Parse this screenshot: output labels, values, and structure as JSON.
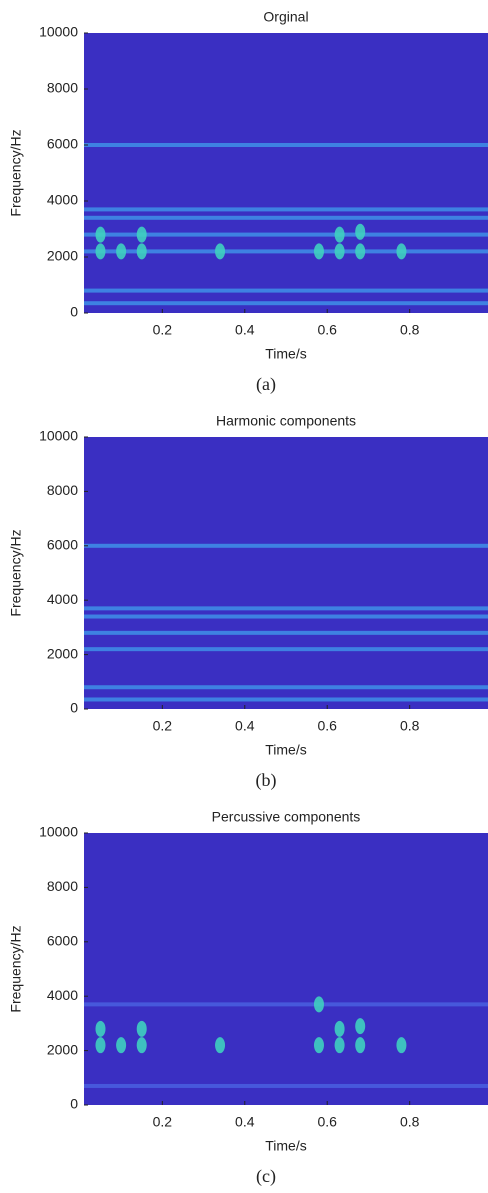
{
  "chart_data": [
    {
      "type": "spectrogram",
      "title": "Orginal",
      "caption": "(a)",
      "x_label": "Time/s",
      "y_label": "Frequency/Hz",
      "xlim": [
        0.01,
        0.99
      ],
      "ylim": [
        0,
        10000
      ],
      "xticks": [
        0.2,
        0.4,
        0.6,
        0.8
      ],
      "yticks": [
        0,
        2000,
        4000,
        6000,
        8000,
        10000
      ],
      "background": "#3a2fc2",
      "band_color": "#3f8fe8",
      "spot_color": "#3fd0c0",
      "bands": [
        350,
        800,
        2200,
        2800,
        3400,
        3700,
        6000
      ],
      "spots": {
        "x": [
          0.05,
          0.05,
          0.1,
          0.15,
          0.15,
          0.34,
          0.58,
          0.63,
          0.63,
          0.68,
          0.68,
          0.78
        ],
        "y": [
          2200,
          2800,
          2200,
          2200,
          2800,
          2200,
          2200,
          2200,
          2800,
          2200,
          2900,
          2200
        ]
      }
    },
    {
      "type": "spectrogram",
      "title": "Harmonic components",
      "caption": "(b)",
      "x_label": "Time/s",
      "y_label": "Frequency/Hz",
      "xlim": [
        0.01,
        0.99
      ],
      "ylim": [
        0,
        10000
      ],
      "xticks": [
        0.2,
        0.4,
        0.6,
        0.8
      ],
      "yticks": [
        0,
        2000,
        4000,
        6000,
        8000,
        10000
      ],
      "background": "#3a2fc2",
      "band_color": "#3f8fe8",
      "spot_color": "#3fd0c0",
      "bands": [
        350,
        800,
        2200,
        2800,
        3400,
        3700,
        6000
      ],
      "spots": {
        "x": [],
        "y": []
      }
    },
    {
      "type": "spectrogram",
      "title": "Percussive components",
      "caption": "(c)",
      "x_label": "Time/s",
      "y_label": "Frequency/Hz",
      "xlim": [
        0.01,
        0.99
      ],
      "ylim": [
        0,
        10000
      ],
      "xticks": [
        0.2,
        0.4,
        0.6,
        0.8
      ],
      "yticks": [
        0,
        2000,
        4000,
        6000,
        8000,
        10000
      ],
      "background": "#3a2fc2",
      "band_color": "#4a5fe0",
      "spot_color": "#3fd0c0",
      "bands": [
        700,
        3700
      ],
      "spots": {
        "x": [
          0.05,
          0.05,
          0.1,
          0.15,
          0.15,
          0.34,
          0.58,
          0.58,
          0.63,
          0.63,
          0.68,
          0.68,
          0.78
        ],
        "y": [
          2200,
          2800,
          2200,
          2200,
          2800,
          2200,
          2200,
          3700,
          2200,
          2800,
          2200,
          2900,
          2200
        ]
      }
    }
  ]
}
